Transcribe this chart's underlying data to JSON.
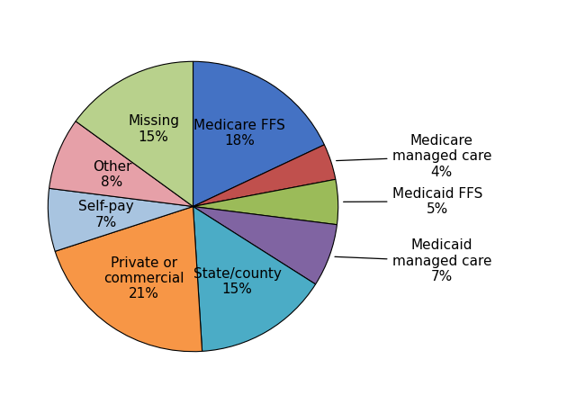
{
  "external_labels": [
    "Medicare FFS",
    "Medicare\nmanaged care",
    "Medicaid FFS",
    "Medicaid\nmanaged care",
    "State/county",
    "Private or\ncommercial",
    "Self-pay",
    "Other",
    "Missing"
  ],
  "pct_labels": [
    "18%",
    "4%",
    "5%",
    "7%",
    "15%",
    "21%",
    "7%",
    "8%",
    "15%"
  ],
  "sizes": [
    18,
    4,
    5,
    7,
    15,
    21,
    7,
    8,
    15
  ],
  "colors": [
    "#4472C4",
    "#C0504D",
    "#9BBB59",
    "#8064A2",
    "#4BACC6",
    "#F79646",
    "#A8C4E0",
    "#E6A0A8",
    "#B8D18C"
  ],
  "background_color": "#FFFFFF",
  "label_fontsize": 11,
  "startangle": 90,
  "inside_indices": [
    0,
    4,
    5,
    6,
    7,
    8
  ],
  "outside_indices": [
    1,
    2,
    3
  ]
}
